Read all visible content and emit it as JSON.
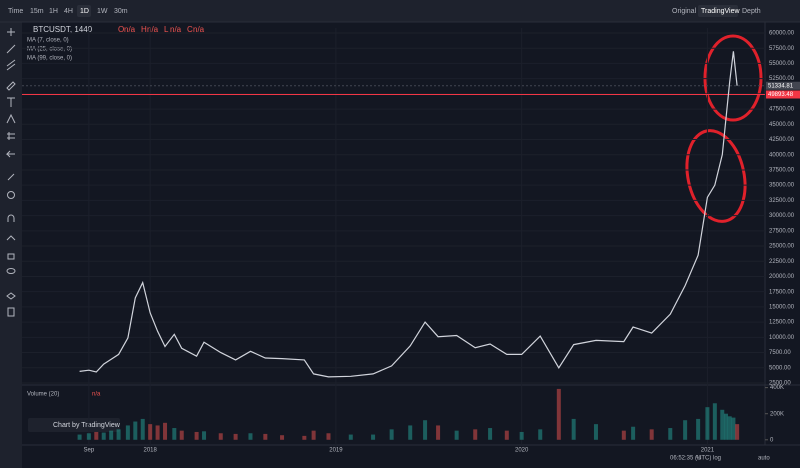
{
  "toolbar": {
    "intervals": [
      "Time",
      "15m",
      "1H",
      "4H",
      "1D",
      "1W",
      "30m"
    ],
    "active": "1D",
    "views": [
      "Original",
      "TradingView",
      "Depth"
    ],
    "active_view": "TradingView"
  },
  "chart_data": {
    "type": "line",
    "symbol": "BTCUSDT, 1440",
    "ohlc": [
      {
        "key": "O",
        "text": "n/a"
      },
      {
        "key": "H",
        "text": "n/a"
      },
      {
        "key": "L",
        "text": "n/a"
      },
      {
        "key": "C",
        "text": "n/a"
      }
    ],
    "indicators": [
      "MA (7, close, 0)",
      "MA (25, close, 0)",
      "MA (99, close, 0)"
    ],
    "color": "#d1d4dc",
    "up_color": "#26a69a",
    "down_color": "#ef5350",
    "x": [
      2017.62,
      2017.67,
      2017.71,
      2017.75,
      2017.79,
      2017.83,
      2017.88,
      2017.92,
      2017.96,
      2018.0,
      2018.04,
      2018.08,
      2018.13,
      2018.17,
      2018.25,
      2018.29,
      2018.38,
      2018.46,
      2018.54,
      2018.62,
      2018.71,
      2018.83,
      2018.88,
      2018.96,
      2019.08,
      2019.2,
      2019.3,
      2019.4,
      2019.48,
      2019.55,
      2019.65,
      2019.75,
      2019.83,
      2019.92,
      2020.0,
      2020.1,
      2020.2,
      2020.28,
      2020.4,
      2020.55,
      2020.6,
      2020.7,
      2020.8,
      2020.88,
      2020.95,
      2021.0,
      2021.04,
      2021.08,
      2021.1,
      2021.12,
      2021.14,
      2021.16
    ],
    "values": [
      4400,
      4600,
      4300,
      5600,
      6400,
      7200,
      9900,
      16500,
      19000,
      14000,
      11000,
      8500,
      10500,
      8200,
      6900,
      9200,
      7500,
      6300,
      7700,
      6600,
      6500,
      6300,
      4000,
      3500,
      3600,
      4000,
      5300,
      8600,
      12500,
      10100,
      10300,
      8300,
      8900,
      7200,
      7200,
      10200,
      5000,
      8800,
      9500,
      9300,
      11700,
      10700,
      13800,
      18500,
      23500,
      33000,
      35000,
      40000,
      46000,
      52000,
      57000,
      51334.81
    ],
    "xlim": [
      2017.31,
      2021.31
    ],
    "xticks": [
      {
        "value": 2017.67,
        "label": "Sep"
      },
      2018,
      2019,
      2020,
      2021
    ],
    "ylim": [
      2170,
      60820
    ],
    "yticks": [
      {
        "value": 2500,
        "label": "2500.00"
      },
      {
        "value": 5000,
        "label": "5000.00"
      },
      {
        "value": 7500,
        "label": "7500.00"
      },
      {
        "value": 10000,
        "label": "10000.00"
      },
      {
        "value": 12500,
        "label": "12500.00"
      },
      {
        "value": 15000,
        "label": "15000.00"
      },
      {
        "value": 17500,
        "label": "17500.00"
      },
      {
        "value": 20000,
        "label": "20000.00"
      },
      {
        "value": 22500,
        "label": "22500.00"
      },
      {
        "value": 25000,
        "label": "25000.00"
      },
      {
        "value": 27500,
        "label": "27500.00"
      },
      {
        "value": 30000,
        "label": "30000.00"
      },
      {
        "value": 32500,
        "label": "32500.00"
      },
      {
        "value": 35000,
        "label": "35000.00"
      },
      {
        "value": 37500,
        "label": "37500.00"
      },
      {
        "value": 40000,
        "label": "40000.00"
      },
      {
        "value": 42500,
        "label": "42500.00"
      },
      {
        "value": 45000,
        "label": "45000.00"
      },
      {
        "value": 47500,
        "label": "47500.00"
      },
      {
        "value": 50000,
        "label": "50000.00"
      },
      {
        "value": 52500,
        "label": "52500.00"
      },
      {
        "value": 55000,
        "label": "55000.00"
      },
      {
        "value": 57500,
        "label": "57500.00"
      },
      {
        "value": 60000,
        "label": "60000.00"
      }
    ],
    "price_lines": [
      {
        "value": 51334.81,
        "color": "#434651"
      },
      {
        "value": 49893.48,
        "color": "#f23645"
      }
    ],
    "volume": {
      "title": "Volume (20)",
      "status": "n/a",
      "values": [
        40000,
        50000,
        60000,
        55000,
        70000,
        80000,
        110000,
        140000,
        160000,
        120000,
        110000,
        130000,
        90000,
        70000,
        60000,
        65000,
        50000,
        45000,
        50000,
        45000,
        35000,
        30000,
        70000,
        50000,
        40000,
        40000,
        80000,
        110000,
        150000,
        110000,
        70000,
        80000,
        90000,
        70000,
        60000,
        80000,
        390000,
        160000,
        120000,
        70000,
        100000,
        80000,
        90000,
        150000,
        160000,
        250000,
        280000,
        230000,
        200000,
        180000,
        170000,
        120000
      ],
      "ylim": [
        -40000,
        420000
      ],
      "yticks": [
        0,
        {
          "value": 200000,
          "label": "200K"
        },
        {
          "value": 400000,
          "label": "400K"
        }
      ]
    },
    "watermark": "Chart by TradingView"
  },
  "status_bar": {
    "time": "06:52:35 (UTC)",
    "options": [
      "%",
      "log",
      "auto"
    ]
  }
}
